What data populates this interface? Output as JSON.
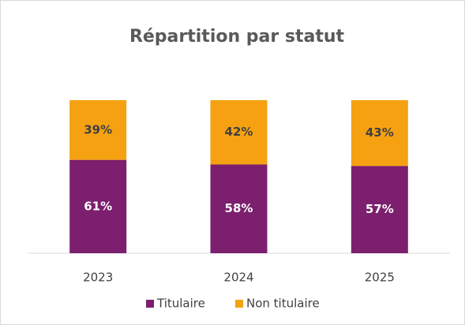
{
  "chart_data": {
    "type": "stacked_bar",
    "title": "Répartition par statut",
    "categories": [
      "2023",
      "2024",
      "2025"
    ],
    "series": [
      {
        "name": "Titulaire",
        "color": "#7b1f6e",
        "values": [
          61,
          58,
          57
        ],
        "value_labels": [
          "61%",
          "58%",
          "57%"
        ]
      },
      {
        "name": "Non titulaire",
        "color": "#f5a112",
        "values": [
          39,
          42,
          43
        ],
        "value_labels": [
          "39%",
          "42%",
          "43%"
        ]
      }
    ],
    "ylim": [
      0,
      100
    ],
    "legend": "bottom"
  }
}
